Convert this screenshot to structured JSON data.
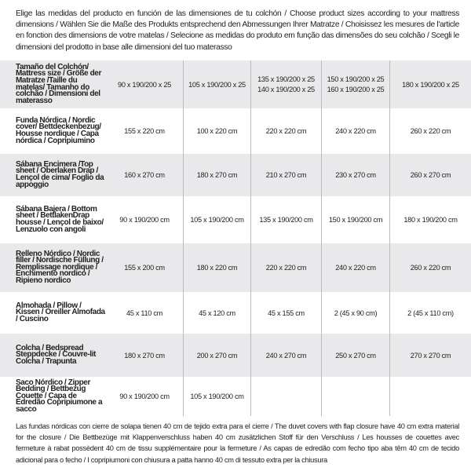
{
  "intro": "Elige las medidas del producto en función de las dimensiones de tu colchón / Choose product sizes according to your mattress dimensions / Wählen Sie die Maße des Produkts entsprechend den Abmessungen Ihrer Matratze / Choisissez les mesures de l'article en fonction des dimensions de votre matelas / Selecione as medidas do produto em função das dimensões do seu colchão / Scegli le dimensioni del prodotto in base alle dimensioni del tuo materasso",
  "header": {
    "label": "Tamaño del Colchón/ Mattress size / Größe der Matratze /Taille du matelas/ Tamanho do colchão / Dimensioni del materasso",
    "cols": [
      "90 x 190/200 x 25",
      "105 x 190/200 x 25",
      "135 x 190/200 x 25\n140 x 190/200 x 25",
      "150 x 190/200 x 25\n160 x 190/200 x 25",
      "180 x 190/200 x 25"
    ]
  },
  "rows": [
    {
      "label": "Funda Nórdica /  Nordic cover/ Bettdeckenbezug/ Housse nordique  / Capa nórdica / Copripiumino",
      "values": [
        "155 x 220 cm",
        "100 x 220 cm",
        "220 x 220 cm",
        "240 x 220 cm",
        "260 x 220 cm"
      ]
    },
    {
      "label": "Sábana Encimera /Top sheet / Oberlaken Drap / Lençol de cima/ Foglio da appoggio",
      "values": [
        "160 x 270 cm",
        "180 x 270 cm",
        "210 x 270 cm",
        "230 x 270 cm",
        "260 x 270 cm"
      ]
    },
    {
      "label": "Sábana Bajera / Bottom sheet / BettlakenDrap housse / Lençol de baixo/ Lenzuolo con angoli",
      "values": [
        "90 x 190/200 cm",
        "105 x 190/200 cm",
        "135 x 190/200 cm",
        "150 x 190/200 cm",
        "180 x 190/200 cm"
      ]
    },
    {
      "label": "Relleno Nórdico / Nordic filler / Nordische Füllung / Remplissage nordique / Enchimento nordico / Ripieno nordico",
      "values": [
        "155 x 200 cm",
        "180 x 220 cm",
        "220 x 220 cm",
        "240 x 220 cm",
        "260 x 220 cm"
      ]
    },
    {
      "label": "Almohada  / Pillow / Kissen / Oreiller Almofada / Cuscino",
      "values": [
        "45 x 110 cm",
        "45 x 120 cm",
        "45 x 155 cm",
        "2 (45 x 90 cm)",
        "2 (45 x 110 cm)"
      ]
    },
    {
      "label": "Colcha / Bedspread Steppdecke / Couvre-lit Colcha / Trapunta",
      "values": [
        "180 x 270 cm",
        "200 x 270 cm",
        "240 x 270 cm",
        "250 x 270 cm",
        "270 x 270 cm"
      ]
    },
    {
      "label": "Saco Nórdico / Zipper Bedding / Bettbezug Couette  / Capa de Edredão Copripiumone a sacco",
      "values": [
        "90 x 190/200 cm",
        "105 x 190/200 cm",
        "",
        "",
        ""
      ]
    }
  ],
  "note": "Las fundas nórdicas con cierre de solapa tienen 40 cm de tejido extra para el cierre  / The duvet covers with flap closure have 40 cm extra material for the closure / Die Bettbezüge mit Klappenverschluss haben 40 cm zusätzlichen Stoff für den Verschluss / Les housses de couettes avec fermeture à rabat possèdent 40 cm de tissu supplémentaire pour la fermeture / As capas de edredão com fecho tipo aba têm 40 cm de tecido adicional para o fecho / I copripiumoni con chiusura a patta hanno 40 cm di tessuto extra per la chiusura"
}
